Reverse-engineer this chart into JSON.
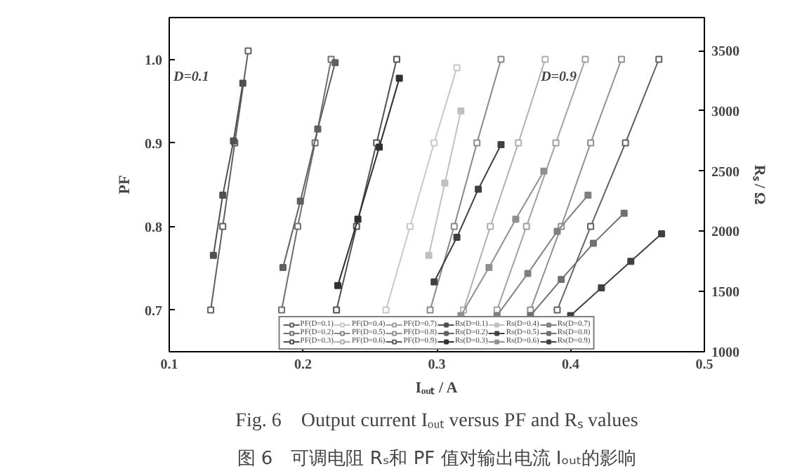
{
  "chart_data": {
    "type": "line",
    "title": "图 6　可调电阻 Rₛ和 PF 值对输出电流 Iₒᵤₜ的影响",
    "subtitle": "Fig. 6　Output current Iₒᵤₜ versus PF and Rₛ values",
    "xlabel": "Iₒᵤₜ / A",
    "ylabel": "PF",
    "y2label": "Rₛ / Ω",
    "annotations": [
      "D=0.1",
      "D=0.9"
    ],
    "xlim": [
      0.1,
      0.5
    ],
    "xticks": [
      0.1,
      0.2,
      0.3,
      0.4,
      0.5
    ],
    "ylim": [
      0.65,
      1.05
    ],
    "yticks": [
      0.7,
      0.8,
      0.9,
      {
        "value": 1.0,
        "label": "1.0"
      }
    ],
    "y2lim": [
      1000,
      3775
    ],
    "y2ticks": [
      1000,
      1500,
      2000,
      2500,
      3000,
      3500
    ],
    "grid": false,
    "legend": "bottom",
    "line_style": "solid",
    "series": [
      {
        "name": "PF(D=0.1)",
        "color": "#606060",
        "marker": "square",
        "x": [
          0.131,
          0.14,
          0.149,
          0.159
        ],
        "values": [
          0.7,
          0.8,
          0.9,
          1.01
        ]
      },
      {
        "name": "PF(D=0.2)",
        "color": "#707070",
        "marker": "square",
        "x": [
          0.184,
          0.196,
          0.209,
          0.221
        ],
        "values": [
          0.7,
          0.8,
          0.9,
          1.0
        ]
      },
      {
        "name": "PF(D=0.3)",
        "color": "#505050",
        "marker": "square",
        "x": [
          0.225,
          0.24,
          0.255,
          0.27
        ],
        "values": [
          0.7,
          0.8,
          0.9,
          1.0
        ]
      },
      {
        "name": "PF(D=0.4)",
        "color": "#c8c8c8",
        "marker": "square",
        "x": [
          0.262,
          0.28,
          0.298,
          0.315
        ],
        "values": [
          0.7,
          0.8,
          0.9,
          0.99
        ]
      },
      {
        "name": "PF(D=0.5)",
        "color": "#888888",
        "marker": "square",
        "x": [
          0.295,
          0.313,
          0.33,
          0.348
        ],
        "values": [
          0.7,
          0.8,
          0.9,
          1.0
        ]
      },
      {
        "name": "PF(D=0.6)",
        "color": "#b0b0b0",
        "marker": "square",
        "x": [
          0.32,
          0.34,
          0.361,
          0.381
        ],
        "values": [
          0.7,
          0.8,
          0.9,
          1.0
        ]
      },
      {
        "name": "PF(D=0.7)",
        "color": "#a0a0a0",
        "marker": "square",
        "x": [
          0.345,
          0.367,
          0.389,
          0.411
        ],
        "values": [
          0.7,
          0.8,
          0.9,
          1.0
        ]
      },
      {
        "name": "PF(D=0.8)",
        "color": "#909090",
        "marker": "square",
        "x": [
          0.37,
          0.393,
          0.415,
          0.438
        ],
        "values": [
          0.7,
          0.8,
          0.9,
          1.0
        ]
      },
      {
        "name": "PF(D=0.9)",
        "color": "#606060",
        "marker": "square",
        "x": [
          0.39,
          0.415,
          0.441,
          0.466
        ],
        "values": [
          0.7,
          0.8,
          0.9,
          1.0
        ]
      },
      {
        "name": "Rs(D=0.1)",
        "color": "#505050",
        "marker": "square",
        "axis": "y2",
        "x": [
          0.133,
          0.14,
          0.148,
          0.155
        ],
        "values": [
          1800,
          2300,
          2750,
          3230
        ]
      },
      {
        "name": "Rs(D=0.2)",
        "color": "#606060",
        "marker": "square",
        "axis": "y2",
        "x": [
          0.185,
          0.198,
          0.211,
          0.224
        ],
        "values": [
          1700,
          2250,
          2850,
          3400
        ]
      },
      {
        "name": "Rs(D=0.3)",
        "color": "#303030",
        "marker": "square",
        "axis": "y2",
        "x": [
          0.226,
          0.241,
          0.257,
          0.272
        ],
        "values": [
          1550,
          2100,
          2700,
          3270
        ]
      },
      {
        "name": "Rs(D=0.4)",
        "color": "#c0c0c0",
        "marker": "square",
        "axis": "y2",
        "x": [
          0.294,
          0.306,
          0.318
        ],
        "values": [
          1800,
          2400,
          3000
        ]
      },
      {
        "name": "Rs(D=0.5)",
        "color": "#404040",
        "marker": "square",
        "axis": "y2",
        "x": [
          0.298,
          0.315,
          0.331,
          0.348
        ],
        "values": [
          1580,
          1950,
          2350,
          2720
        ]
      },
      {
        "name": "Rs(D=0.6)",
        "color": "#909090",
        "marker": "square",
        "axis": "y2",
        "x": [
          0.318,
          0.339,
          0.359,
          0.38
        ],
        "values": [
          1300,
          1700,
          2100,
          2500
        ]
      },
      {
        "name": "Rs(D=0.7)",
        "color": "#808080",
        "marker": "square",
        "axis": "y2",
        "x": [
          0.345,
          0.368,
          0.39,
          0.413
        ],
        "values": [
          1300,
          1650,
          2000,
          2300
        ]
      },
      {
        "name": "Rs(D=0.8)",
        "color": "#707070",
        "marker": "square",
        "axis": "y2",
        "x": [
          0.37,
          0.393,
          0.417,
          0.44
        ],
        "values": [
          1300,
          1600,
          1900,
          2150
        ]
      },
      {
        "name": "Rs(D=0.9)",
        "color": "#404040",
        "marker": "square",
        "axis": "y2",
        "x": [
          0.4,
          0.423,
          0.445,
          0.468
        ],
        "values": [
          1300,
          1530,
          1750,
          1980
        ]
      }
    ]
  }
}
